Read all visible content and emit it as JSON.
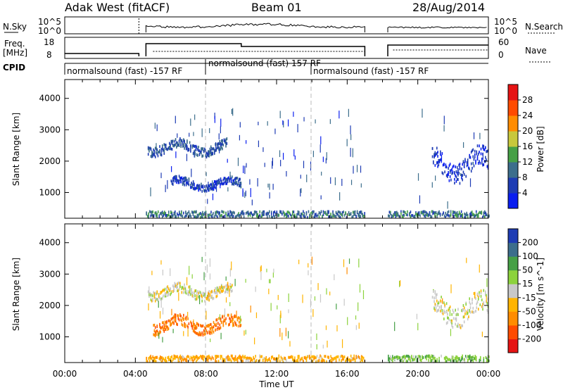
{
  "header": {
    "station": "Adak West (fitACF)",
    "beam": "Beam 01",
    "date": "28/Aug/2014"
  },
  "strip": {
    "nsky_label": "N.Sky",
    "nsky_ticks": [
      "10^5",
      "10^0"
    ],
    "nsearch_label": "N.Search",
    "nsearch_ticks": [
      "10^5",
      "10^0"
    ],
    "freq_label": "Freq.",
    "freq_unit": "[MHz]",
    "freq_ticks": [
      "18",
      "8"
    ],
    "nave_label": "Nave",
    "nave_ticks": [
      "60",
      "0"
    ],
    "cpid_label": "CPID",
    "cpid_segments": [
      {
        "text": "normalsound (fast) -157 RF",
        "start_hour": 0.0
      },
      {
        "text": "normalsound (fast) 157 RF",
        "start_hour": 8.0
      },
      {
        "text": "normalsound (fast) -157 RF",
        "start_hour": 14.0
      }
    ]
  },
  "xaxis": {
    "label": "Time UT",
    "ticks": [
      "00:00",
      "04:00",
      "08:00",
      "12:00",
      "16:00",
      "20:00",
      "00:00"
    ],
    "range_hours": [
      0,
      24
    ]
  },
  "chart_data": [
    {
      "type": "heatmap",
      "name": "power",
      "ylabel": "Slant Range [km]",
      "yticks": [
        "1000",
        "2000",
        "3000",
        "4000"
      ],
      "ylim": [
        180,
        4600
      ],
      "xlim_hours": [
        0,
        24
      ],
      "data_gaps_hours": [
        [
          0,
          4.6
        ],
        [
          17.0,
          18.3
        ]
      ],
      "colorbar": {
        "label": "Power [dB]",
        "ticks": [
          "4",
          "8",
          "12",
          "16",
          "20",
          "24",
          "28"
        ],
        "colors": [
          "#0a1ef0",
          "#1e3cb4",
          "#3c6e8c",
          "#46a046",
          "#c8c83c",
          "#ff8c00",
          "#ff4b00",
          "#e61414"
        ]
      },
      "features": [
        {
          "kind": "echo band",
          "hours": [
            4.7,
            9.2
          ],
          "range_km": [
            2100,
            2700
          ],
          "level_dB": 8
        },
        {
          "kind": "echo band",
          "hours": [
            6.0,
            10.0
          ],
          "range_km": [
            1000,
            1500
          ],
          "level_dB": 6
        },
        {
          "kind": "echo band",
          "hours": [
            20.8,
            24.0
          ],
          "range_km": [
            1200,
            2500
          ],
          "level_dB": 5
        },
        {
          "kind": "ground scatter",
          "hours": [
            4.6,
            17.0
          ],
          "range_km": [
            180,
            500
          ],
          "level_dB": 10
        },
        {
          "kind": "ground scatter",
          "hours": [
            18.3,
            24.0
          ],
          "range_km": [
            180,
            500
          ],
          "level_dB": 10
        }
      ]
    },
    {
      "type": "heatmap",
      "name": "velocity",
      "ylabel": "Slant Range [km]",
      "yticks": [
        "1000",
        "2000",
        "3000",
        "4000"
      ],
      "ylim": [
        180,
        4600
      ],
      "xlim_hours": [
        0,
        24
      ],
      "data_gaps_hours": [
        [
          0,
          4.6
        ],
        [
          17.0,
          18.3
        ]
      ],
      "colorbar": {
        "label": "Velocity [m s^-1]",
        "ticks": [
          "200",
          "100",
          "50",
          "15",
          "-15",
          "-50",
          "-100",
          "-200"
        ],
        "colors": [
          "#1e3cb4",
          "#3c6e8c",
          "#46a046",
          "#8cd23c",
          "#c8c8c8",
          "#ffb400",
          "#ff8c00",
          "#ff4b00",
          "#e61414"
        ]
      },
      "features": [
        {
          "kind": "echo band",
          "hours": [
            4.7,
            9.5
          ],
          "range_km": [
            2100,
            2700
          ],
          "velocity_ms": 0
        },
        {
          "kind": "echo band",
          "hours": [
            5.0,
            10.0
          ],
          "range_km": [
            1000,
            1700
          ],
          "velocity_ms": -90
        },
        {
          "kind": "echo band",
          "hours": [
            20.8,
            24.0
          ],
          "range_km": [
            1200,
            2500
          ],
          "velocity_ms": 0
        },
        {
          "kind": "ground scatter",
          "hours": [
            4.6,
            17.0
          ],
          "range_km": [
            180,
            500
          ],
          "velocity_ms": -40
        },
        {
          "kind": "ground scatter",
          "hours": [
            18.3,
            24.0
          ],
          "range_km": [
            180,
            500
          ],
          "velocity_ms": 40
        }
      ]
    }
  ]
}
